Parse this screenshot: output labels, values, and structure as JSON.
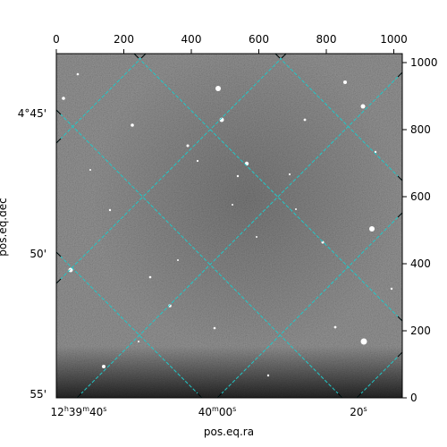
{
  "image": {
    "type": "astronomical-image-with-wcs-grid",
    "description": "grayscale noisy star field with a cyan dashed RA/Dec coordinate grid overlay",
    "grid_color": "#20c8c8",
    "background_gray": "#6e6e6e"
  },
  "axes": {
    "xlabel": "pos.eq.ra",
    "ylabel": "pos.eq.dec",
    "top_pixel_ticks": [
      "0",
      "200",
      "400",
      "600",
      "800",
      "1000"
    ],
    "right_pixel_ticks": [
      "1000",
      "800",
      "600",
      "400",
      "200",
      "0"
    ],
    "ra_ticks": [
      {
        "main": "12",
        "h": "h",
        "mid": "39",
        "m": "m",
        "sec": "40",
        "s": "s"
      },
      {
        "main": "40",
        "m": "m",
        "sec": "00",
        "s": "s"
      },
      {
        "main": "20",
        "s": "s"
      }
    ],
    "dec_ticks": [
      "4°45'",
      "50'",
      "55'"
    ]
  }
}
